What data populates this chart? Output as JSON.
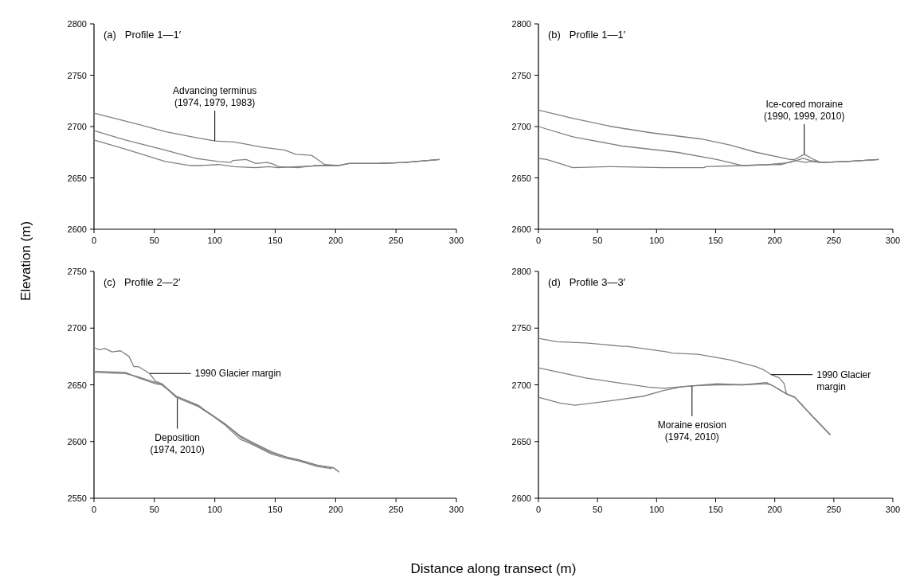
{
  "chart_data": [
    {
      "type": "line",
      "title": "(a)   Profile 1—1′",
      "ylabel": "Elevation (m)",
      "xlim": [
        0,
        300
      ],
      "xticks": [
        0,
        50,
        100,
        150,
        200,
        250,
        300
      ],
      "ylim": [
        2600,
        2800
      ],
      "yticks": [
        2600,
        2650,
        2700,
        2750,
        2800
      ],
      "line_style": "solid",
      "annotations": [
        {
          "text": "Advancing terminus\n(1974, 1979, 1983)",
          "x": 100,
          "y": 2686
        }
      ],
      "series": [
        {
          "color": "#808080",
          "x": [
            0,
            37,
            59,
            81,
            100,
            116,
            125,
            139,
            158,
            167,
            180,
            185,
            191,
            202,
            211,
            235,
            257,
            286
          ],
          "values": [
            2713,
            2702,
            2695,
            2690,
            2686,
            2685,
            2683,
            2680,
            2677,
            2673,
            2672,
            2668,
            2663,
            2662,
            2664,
            2664,
            2665,
            2668
          ]
        },
        {
          "color": "#808080",
          "x": [
            0,
            26,
            59,
            84,
            103,
            113,
            115,
            126,
            134,
            143,
            147,
            153,
            169,
            182,
            202,
            211,
            235,
            257,
            286
          ],
          "values": [
            2696,
            2687,
            2677,
            2669,
            2666,
            2665,
            2667,
            2668,
            2664,
            2665,
            2664,
            2661,
            2660,
            2662,
            2662,
            2664,
            2664,
            2665,
            2668
          ]
        },
        {
          "color": "#808080",
          "x": [
            0,
            26,
            59,
            80,
            88,
            103,
            116,
            134,
            145,
            152,
            169,
            191,
            202,
            211,
            235,
            257,
            286
          ],
          "values": [
            2687,
            2678,
            2666,
            2662,
            2662,
            2663,
            2661,
            2660,
            2661,
            2660,
            2661,
            2662,
            2662,
            2664,
            2664,
            2665,
            2668
          ]
        }
      ]
    },
    {
      "type": "line",
      "title": "(b)   Profile 1—1′",
      "xlim": [
        0,
        300
      ],
      "xticks": [
        0,
        50,
        100,
        150,
        200,
        250,
        300
      ],
      "ylim": [
        2600,
        2800
      ],
      "yticks": [
        2600,
        2650,
        2700,
        2750,
        2800
      ],
      "line_style": "solid",
      "annotations": [
        {
          "text": "Ice-cored moraine\n(1990, 1999, 2010)",
          "x": 225,
          "y": 2673
        }
      ],
      "series": [
        {
          "color": "#808080",
          "x": [
            0,
            29,
            62,
            95,
            137,
            142,
            162,
            184,
            213,
            217,
            225,
            233,
            239,
            261,
            288
          ],
          "values": [
            2716,
            2708,
            2700,
            2694,
            2688,
            2687,
            2682,
            2675,
            2668,
            2668,
            2673,
            2668,
            2665,
            2666,
            2668
          ]
        },
        {
          "color": "#808080",
          "x": [
            0,
            29,
            71,
            117,
            151,
            173,
            195,
            213,
            224,
            230,
            239,
            261,
            288
          ],
          "values": [
            2700,
            2690,
            2681,
            2675,
            2668,
            2662,
            2663,
            2665,
            2669,
            2667,
            2665,
            2666,
            2668
          ]
        },
        {
          "color": "#808080",
          "x": [
            0,
            7,
            18,
            29,
            62,
            106,
            140,
            142,
            173,
            197,
            206,
            217,
            226,
            230,
            239,
            261,
            288
          ],
          "values": [
            2669,
            2668,
            2664,
            2660,
            2661,
            2660,
            2660,
            2661,
            2662,
            2663,
            2663,
            2667,
            2665,
            2666,
            2665,
            2666,
            2668
          ]
        }
      ]
    },
    {
      "type": "line",
      "title": "(c)   Profile 2—2′",
      "xlabel": "Distance along transect (m)",
      "xlim": [
        0,
        300
      ],
      "xticks": [
        0,
        50,
        100,
        150,
        200,
        250,
        300
      ],
      "ylim": [
        2550,
        2750
      ],
      "yticks": [
        2550,
        2600,
        2650,
        2700,
        2750
      ],
      "line_style": "solid",
      "annotations": [
        {
          "text": "1990 Glacier margin",
          "x": 46,
          "y": 2660
        },
        {
          "text": "Deposition\n(1974, 2010)",
          "x": 69,
          "y": 2638
        }
      ],
      "series": [
        {
          "color": "#808080",
          "x": [
            0,
            4,
            9,
            15,
            22,
            29,
            33,
            37,
            46,
            51,
            56,
            68,
            86,
            108,
            121,
            130,
            147,
            160,
            169,
            185,
            198,
            203
          ],
          "values": [
            2683,
            2681,
            2682,
            2679,
            2680,
            2675,
            2666,
            2666,
            2660,
            2653,
            2651,
            2640,
            2632,
            2616,
            2604,
            2599,
            2590,
            2586,
            2584,
            2579,
            2577,
            2573
          ]
        },
        {
          "color": "#808080",
          "x": [
            0,
            26,
            37,
            51,
            56,
            68,
            86,
            108,
            121,
            130,
            147,
            160,
            169,
            185,
            198,
            202
          ],
          "values": [
            2661,
            2660,
            2657,
            2652,
            2651,
            2639,
            2631,
            2616,
            2605,
            2600,
            2591,
            2586,
            2584,
            2579,
            2577,
            2574
          ]
        },
        {
          "color": "#808080",
          "x": [
            0,
            26,
            37,
            51,
            56,
            68,
            86,
            108,
            121,
            130,
            147,
            160,
            169,
            185,
            197
          ],
          "values": [
            2662,
            2661,
            2656,
            2651,
            2650,
            2640,
            2632,
            2615,
            2602,
            2598,
            2589,
            2585,
            2583,
            2578,
            2576
          ]
        }
      ]
    },
    {
      "type": "line",
      "title": "(d)   Profile 3—3′",
      "xlim": [
        0,
        300
      ],
      "xticks": [
        0,
        50,
        100,
        150,
        200,
        250,
        300
      ],
      "ylim": [
        2600,
        2800
      ],
      "yticks": [
        2600,
        2650,
        2700,
        2750,
        2800
      ],
      "line_style": "solid",
      "annotations": [
        {
          "text": "1990 Glacier\nmargin",
          "x": 197,
          "y": 2709
        },
        {
          "text": "Moraine erosion\n(1974, 2010)",
          "x": 130,
          "y": 2699
        }
      ],
      "series": [
        {
          "color": "#808080",
          "x": [
            0,
            16,
            40,
            71,
            75,
            109,
            113,
            135,
            162,
            184,
            191,
            197,
            204,
            208,
            210,
            217,
            233,
            247
          ],
          "values": [
            2741,
            2738,
            2737,
            2734,
            2734,
            2729,
            2728,
            2727,
            2722,
            2716,
            2713,
            2709,
            2706,
            2701,
            2692,
            2689,
            2671,
            2656
          ]
        },
        {
          "color": "#808080",
          "x": [
            0,
            40,
            93,
            106,
            117,
            129,
            151,
            173,
            193,
            197,
            210,
            217,
            233,
            247
          ],
          "values": [
            2715,
            2706,
            2698,
            2697,
            2698,
            2699,
            2701,
            2700,
            2702,
            2700,
            2692,
            2689,
            2671,
            2656
          ]
        },
        {
          "color": "#808080",
          "x": [
            0,
            18,
            31,
            62,
            89,
            106,
            120,
            129,
            151,
            173,
            193,
            197,
            210,
            217,
            233,
            247
          ],
          "values": [
            2689,
            2684,
            2682,
            2686,
            2690,
            2695,
            2698,
            2699,
            2700,
            2700,
            2701,
            2700,
            2692,
            2689,
            2671,
            2656
          ]
        }
      ]
    }
  ]
}
